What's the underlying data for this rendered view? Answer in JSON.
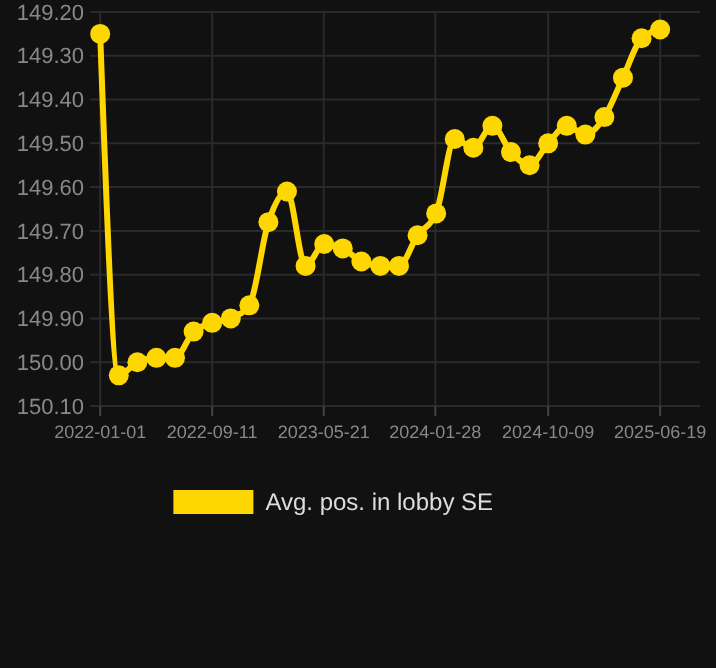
{
  "chart_data": {
    "type": "line",
    "x": [
      "2022-01-01",
      "2022-02-12",
      "2022-03-26",
      "2022-05-08",
      "2022-06-19",
      "2022-07-31",
      "2022-09-11",
      "2022-10-23",
      "2022-12-04",
      "2023-01-16",
      "2023-02-27",
      "2023-04-10",
      "2023-05-22",
      "2023-07-03",
      "2023-08-14",
      "2023-09-26",
      "2023-11-07",
      "2023-12-19",
      "2024-01-30",
      "2024-03-12",
      "2024-04-23",
      "2024-06-05",
      "2024-07-17",
      "2024-08-28",
      "2024-10-09",
      "2024-11-20",
      "2025-01-01",
      "2025-02-13",
      "2025-03-27",
      "2025-05-08",
      "2025-06-19"
    ],
    "series": [
      {
        "name": "Avg. pos. in lobby SE",
        "color": "#ffd700",
        "values": [
          149.25,
          150.03,
          150.0,
          149.99,
          149.99,
          149.93,
          149.91,
          149.9,
          149.87,
          149.68,
          149.61,
          149.78,
          149.73,
          149.74,
          149.77,
          149.78,
          149.78,
          149.71,
          149.66,
          149.49,
          149.51,
          149.46,
          149.52,
          149.55,
          149.5,
          149.46,
          149.48,
          149.44,
          149.35,
          149.26,
          149.24
        ]
      }
    ],
    "ylim": [
      150.1,
      149.2
    ],
    "yticks": [
      {
        "value": 149.2,
        "label": "149.20"
      },
      {
        "value": 149.3,
        "label": "149.30"
      },
      {
        "value": 149.4,
        "label": "149.40"
      },
      {
        "value": 149.5,
        "label": "149.50"
      },
      {
        "value": 149.6,
        "label": "149.60"
      },
      {
        "value": 149.7,
        "label": "149.70"
      },
      {
        "value": 149.8,
        "label": "149.80"
      },
      {
        "value": 149.9,
        "label": "149.90"
      },
      {
        "value": 150.0,
        "label": "150.00"
      },
      {
        "value": 150.1,
        "label": "150.10"
      }
    ],
    "xlim": [
      "2021-12-09",
      "2025-09-17"
    ],
    "xticks": [
      "2022-01-01",
      "2022-09-11",
      "2023-05-21",
      "2024-01-28",
      "2024-10-09",
      "2025-06-19"
    ],
    "grid": true,
    "legend": "bottom",
    "marker": "circle",
    "line_style": "solid"
  }
}
